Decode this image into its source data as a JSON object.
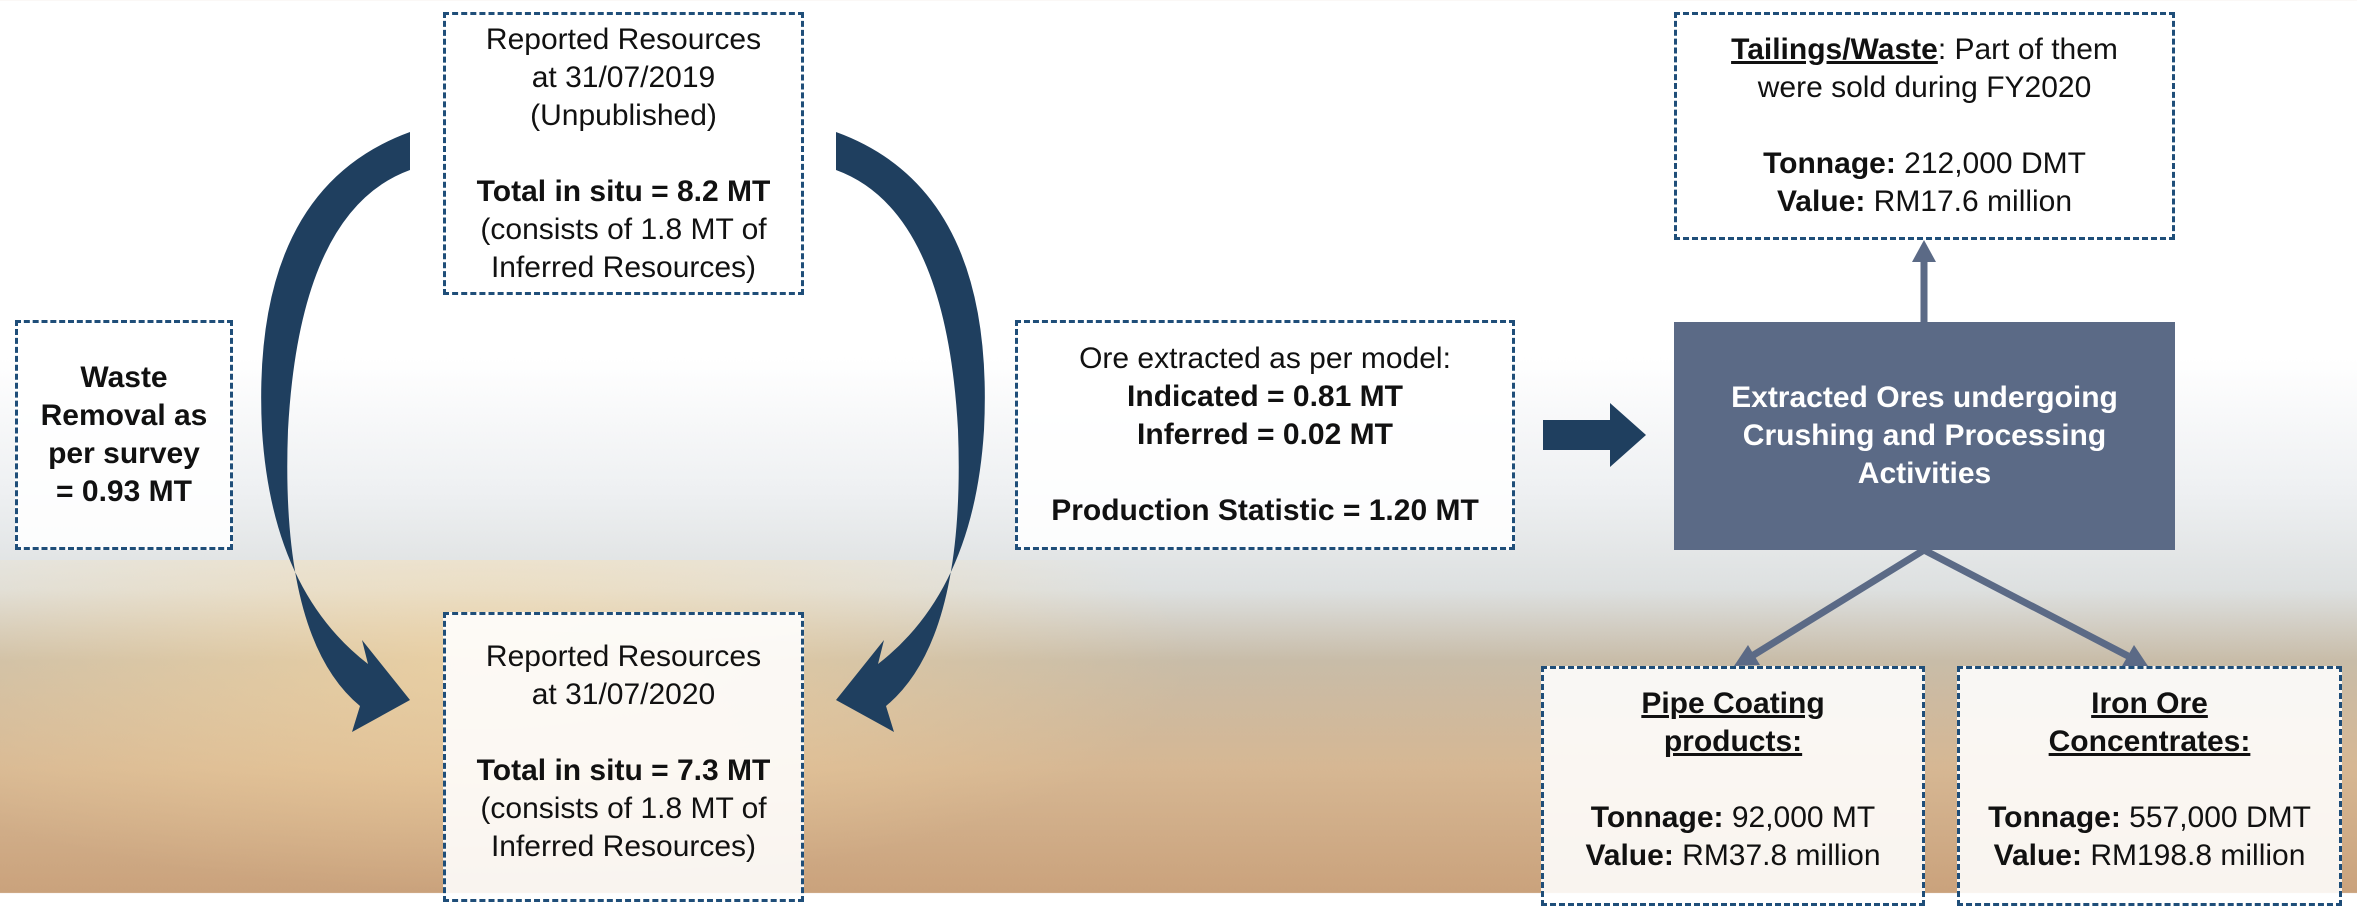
{
  "resources_2019": {
    "heading": [
      "Reported Resources",
      "at 31/07/2019",
      "(Unpublished)"
    ],
    "total": "Total in situ = 8.2 MT",
    "note": [
      "(consists of 1.8 MT of",
      "Inferred Resources)"
    ]
  },
  "resources_2020": {
    "heading": [
      "Reported Resources",
      "at 31/07/2020"
    ],
    "total": "Total in situ = 7.3 MT",
    "note": [
      "(consists of 1.8 MT of",
      "Inferred Resources)"
    ]
  },
  "waste_removal": {
    "lines": [
      "Waste",
      "Removal as",
      "per survey",
      "= 0.93 MT"
    ]
  },
  "ore_extracted": {
    "intro": "Ore extracted as per model:",
    "indicated": "Indicated = 0.81 MT",
    "inferred": "Inferred = 0.02 MT",
    "production": "Production Statistic = 1.20 MT"
  },
  "processing": {
    "lines": [
      "Extracted Ores undergoing",
      "Crushing and Processing",
      "Activities"
    ]
  },
  "tailings": {
    "title": "Tailings/Waste",
    "title_rest": ": Part of them",
    "line2": "were sold during FY2020",
    "tonnage_label": "Tonnage:",
    "tonnage": "212,000 DMT",
    "value_label": "Value:",
    "value": "RM17.6 million"
  },
  "pipe_coating": {
    "title": [
      "Pipe Coating",
      "products:"
    ],
    "tonnage_label": "Tonnage:",
    "tonnage": "92,000 MT",
    "value_label": "Value:",
    "value": "RM37.8 million"
  },
  "iron_ore": {
    "title": [
      "Iron Ore",
      "Concentrates:"
    ],
    "tonnage_label": "Tonnage:",
    "tonnage": "557,000 DMT",
    "value_label": "Value:",
    "value": "RM198.8 million"
  }
}
